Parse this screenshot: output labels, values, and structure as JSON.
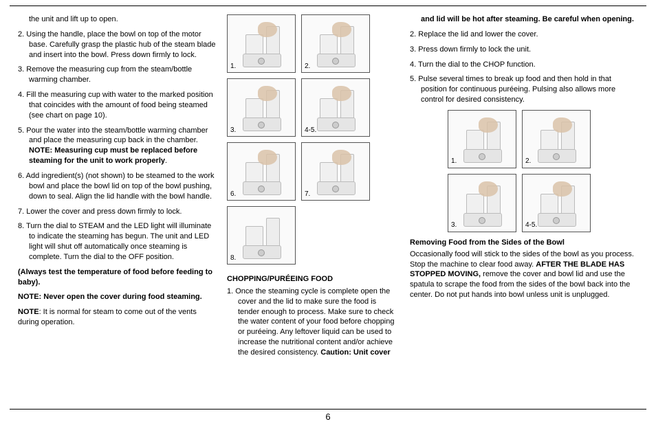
{
  "pageNumber": "6",
  "col1": {
    "item1_cont": "the unit and lift up to open.",
    "items": [
      {
        "n": "2.",
        "t": "Using the handle, place the bowl on top of the motor base. Carefully grasp the plastic hub of the steam blade and insert into the bowl. Press down firmly to lock."
      },
      {
        "n": "3.",
        "t": "Remove the measuring cup from the steam/bottle warming chamber."
      },
      {
        "n": "4.",
        "t": "Fill the measuring cup with water to the marked position that coincides with the amount of food being steamed (see chart on page 10)."
      },
      {
        "n": "5.",
        "pre": "Pour the water into the steam/bottle warming chamber and place the measuring cup back in the chamber. ",
        "boldLabel": "NOTE: Measuring cup must be replaced before steaming for the unit to work properly",
        "post": "."
      },
      {
        "n": "6.",
        "t": "Add ingredient(s) (not shown) to be steamed to the work bowl and place the bowl lid on top of the bowl pushing, down to seal. Align the lid handle with the bowl handle."
      },
      {
        "n": "7.",
        "t": "Lower the cover and press down firmly to lock."
      },
      {
        "n": "8.",
        "t": "Turn the dial to STEAM and the LED light will illuminate to indicate the steaming has begun. The unit and LED light will shut off automatically once steaming is complete. Turn the dial to the OFF position."
      }
    ],
    "p1": "(Always test the temperature of food before feeding to baby).",
    "p2": "NOTE: Never open the cover during food steaming.",
    "p3a": "NOTE",
    "p3b": ": It is normal for steam to come out of the vents during operation."
  },
  "grid1": {
    "labels": [
      "1.",
      "2.",
      "3.",
      "4-5.",
      "6.",
      "7.",
      "8."
    ]
  },
  "col2": {
    "heading": "CHOPPING/PURÉEING FOOD",
    "item1n": "1.",
    "item1": "Once the steaming cycle is complete open the cover and the lid to make sure the food is tender enough to process. Make sure to check the water content of your food before chopping or puréeing. Any leftover liquid can be used to increase the nutritional content and/or achieve the desired consistency. ",
    "item1bold": "Caution: Unit cover"
  },
  "col3": {
    "contBold": "and lid will be hot after steaming. Be careful when opening.",
    "items": [
      {
        "n": "2.",
        "t": "Replace the lid and lower the cover."
      },
      {
        "n": "3.",
        "t": "Press down firmly to lock the unit."
      },
      {
        "n": "4.",
        "t": "Turn the dial to the CHOP function."
      },
      {
        "n": "5.",
        "t": "Pulse several times to break up food and then hold in that position for continuous puréeing. Pulsing also allows more control for desired consistency."
      }
    ],
    "heading2": "Removing Food from the Sides of the Bowl",
    "p_pre": "Occasionally food will stick to the sides of the bowl as you process. Stop the machine to clear food away. ",
    "p_bold": "AFTER THE BLADE HAS STOPPED MOVING,",
    "p_post": " remove the cover and bowl lid and use the spatula to scrape the food from the sides of the bowl back into the center. Do not put hands into bowl unless unit is unplugged."
  },
  "grid2": {
    "labels": [
      "1.",
      "2.",
      "3.",
      "4-5."
    ]
  }
}
